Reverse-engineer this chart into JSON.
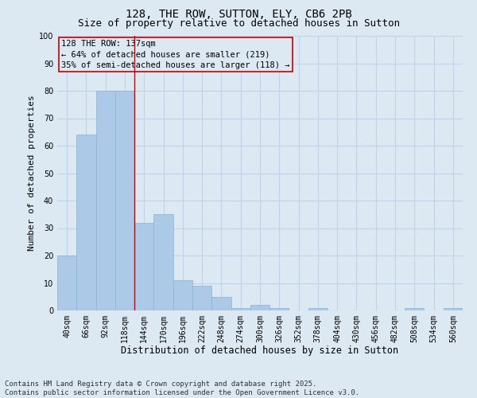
{
  "title": "128, THE ROW, SUTTON, ELY, CB6 2PB",
  "subtitle": "Size of property relative to detached houses in Sutton",
  "xlabel": "Distribution of detached houses by size in Sutton",
  "ylabel": "Number of detached properties",
  "categories": [
    "40sqm",
    "66sqm",
    "92sqm",
    "118sqm",
    "144sqm",
    "170sqm",
    "196sqm",
    "222sqm",
    "248sqm",
    "274sqm",
    "300sqm",
    "326sqm",
    "352sqm",
    "378sqm",
    "404sqm",
    "430sqm",
    "456sqm",
    "482sqm",
    "508sqm",
    "534sqm",
    "560sqm"
  ],
  "values": [
    20,
    64,
    80,
    80,
    32,
    35,
    11,
    9,
    5,
    1,
    2,
    1,
    0,
    1,
    0,
    0,
    0,
    0,
    1,
    0,
    1
  ],
  "bar_color": "#adc9e8",
  "bar_edge_color": "#8ab4d8",
  "marker_line_color": "#cc0000",
  "annotation_text": "128 THE ROW: 137sqm\n← 64% of detached houses are smaller (219)\n35% of semi-detached houses are larger (118) →",
  "ylim": [
    0,
    100
  ],
  "yticks": [
    0,
    10,
    20,
    30,
    40,
    50,
    60,
    70,
    80,
    90,
    100
  ],
  "grid_color": "#c0d4e8",
  "background_color": "#dce8f2",
  "footer_text": "Contains HM Land Registry data © Crown copyright and database right 2025.\nContains public sector information licensed under the Open Government Licence v3.0.",
  "title_fontsize": 10,
  "subtitle_fontsize": 9,
  "xlabel_fontsize": 8.5,
  "ylabel_fontsize": 8,
  "tick_fontsize": 7,
  "annotation_fontsize": 7.5,
  "footer_fontsize": 6.5
}
